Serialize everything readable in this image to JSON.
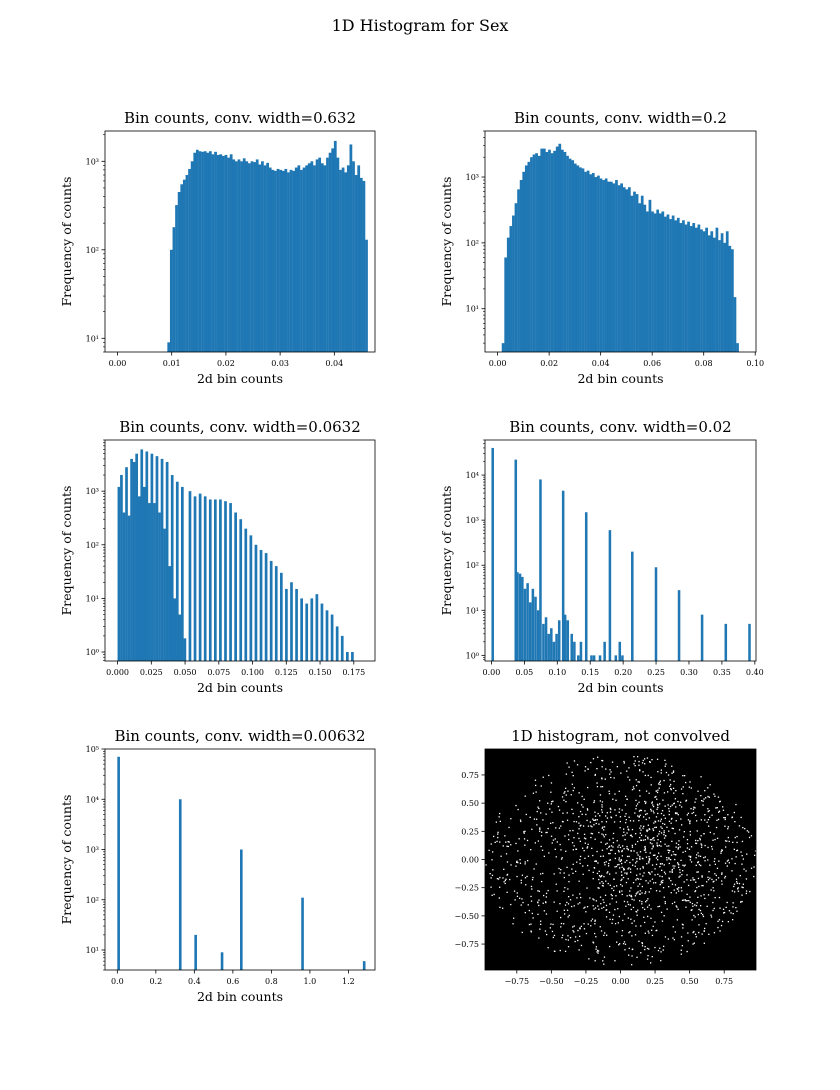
{
  "figure": {
    "suptitle": "1D Histogram for Sex"
  },
  "colors": {
    "bar": "#1f77b4",
    "axes": "#000000",
    "background": "#ffffff",
    "image_bg": "#000000",
    "dots": "#ffffff"
  },
  "chart_data": [
    {
      "id": "w0632",
      "type": "bar",
      "yscale": "log",
      "title": "Bin counts, conv. width=0.632",
      "xlabel": "2d bin counts",
      "ylabel": "Frequency of counts",
      "xlim": [
        -0.0023,
        0.0475
      ],
      "ylim": [
        7,
        2200
      ],
      "xticks": [
        0,
        0.01,
        0.02,
        0.03,
        0.04
      ],
      "xtick_labels": [
        "0.00",
        "0.01",
        "0.02",
        "0.03",
        "0.04"
      ],
      "yticks": [
        10,
        100,
        1000
      ],
      "ytick_labels": [
        "10¹",
        "10²",
        "10³"
      ],
      "bin_width": 0.00048,
      "bin_start": 0.0092,
      "values": [
        9,
        100,
        180,
        320,
        450,
        550,
        620,
        700,
        820,
        1000,
        1250,
        1350,
        1300,
        1280,
        1300,
        1250,
        1300,
        1200,
        1280,
        1180,
        1200,
        1150,
        1180,
        1100,
        1200,
        1050,
        1000,
        1050,
        1000,
        1080,
        1000,
        950,
        1000,
        980,
        1050,
        920,
        1000,
        900,
        960,
        850,
        800,
        780,
        820,
        800,
        780,
        820,
        750,
        800,
        780,
        850,
        900,
        800,
        850,
        900,
        950,
        1000,
        900,
        1050,
        1100,
        950,
        900,
        1100,
        1250,
        1400,
        1700,
        1100,
        800,
        850,
        750,
        900,
        1550,
        1000,
        700,
        900,
        650,
        600,
        130
      ]
    },
    {
      "id": "w02",
      "type": "bar",
      "yscale": "log",
      "title": "Bin counts, conv. width=0.2",
      "xlabel": "2d bin counts",
      "ylabel": "Frequency of counts",
      "xlim": [
        -0.0049,
        0.1003
      ],
      "ylim": [
        2.2,
        5000
      ],
      "xticks": [
        0,
        0.02,
        0.04,
        0.06,
        0.08,
        0.1
      ],
      "xtick_labels": [
        "0.00",
        "0.02",
        "0.04",
        "0.06",
        "0.08",
        "0.10"
      ],
      "yticks": [
        10,
        100,
        1000
      ],
      "ytick_labels": [
        "10¹",
        "10²",
        "10³"
      ],
      "bin_width": 0.001,
      "bin_start": 0.0016,
      "values": [
        3,
        60,
        120,
        180,
        260,
        400,
        650,
        900,
        1200,
        1500,
        1700,
        2000,
        2200,
        2300,
        2100,
        2700,
        2700,
        2400,
        2600,
        2300,
        2500,
        2900,
        3200,
        2600,
        2400,
        2100,
        1900,
        1800,
        1600,
        1500,
        1400,
        1350,
        1200,
        1250,
        1100,
        1150,
        1000,
        1050,
        950,
        900,
        950,
        850,
        850,
        800,
        900,
        750,
        800,
        700,
        650,
        700,
        520,
        600,
        550,
        400,
        520,
        380,
        300,
        450,
        300,
        280,
        320,
        280,
        300,
        250,
        270,
        230,
        260,
        220,
        240,
        200,
        220,
        190,
        210,
        180,
        200,
        170,
        190,
        160,
        150,
        170,
        130,
        150,
        120,
        170,
        110,
        140,
        100,
        150,
        90,
        80,
        15,
        3
      ]
    },
    {
      "id": "w00632",
      "type": "bar",
      "yscale": "log",
      "title": "Bin counts, conv. width=0.0632",
      "xlabel": "2d bin counts",
      "ylabel": "Frequency of counts",
      "xlim": [
        -0.0093,
        0.1907
      ],
      "ylim": [
        0.68,
        9000
      ],
      "xticks": [
        0,
        0.025,
        0.05,
        0.075,
        0.1,
        0.125,
        0.15,
        0.175
      ],
      "xtick_labels": [
        "0.000",
        "0.025",
        "0.050",
        "0.075",
        "0.100",
        "0.125",
        "0.150",
        "0.175"
      ],
      "yticks": [
        1,
        10,
        100,
        1000
      ],
      "ytick_labels": [
        "10⁰",
        "10¹",
        "10²",
        "10³"
      ],
      "bin_width": 0.00188,
      "bin_start": 0,
      "values": [
        1200,
        2000,
        400,
        2800,
        350,
        4000,
        3500,
        5000,
        800,
        6000,
        1200,
        5500,
        600,
        5000,
        600,
        4500,
        400,
        4000,
        200,
        3500,
        40,
        2000,
        10,
        1500,
        5,
        1200,
        1.8,
        0,
        1000,
        0,
        800,
        0,
        900,
        0,
        800,
        0,
        700,
        0,
        700,
        0,
        700,
        0,
        650,
        0,
        600,
        0,
        400,
        0,
        300,
        0,
        200,
        0,
        150,
        0,
        100,
        0,
        80,
        0,
        70,
        0,
        50,
        0,
        40,
        0,
        30,
        0,
        15,
        0,
        20,
        0,
        15,
        0,
        10,
        0,
        8,
        0,
        10,
        0,
        12,
        0,
        8,
        0,
        6,
        0,
        5,
        0,
        3,
        0,
        2,
        0,
        1,
        0,
        1
      ]
    },
    {
      "id": "w002",
      "type": "bar",
      "yscale": "log",
      "title": "Bin counts, conv. width=0.02",
      "xlabel": "2d bin counts",
      "ylabel": "Frequency of counts",
      "xlim": [
        -0.0098,
        0.4018
      ],
      "ylim": [
        0.75,
        60000
      ],
      "xticks": [
        0,
        0.05,
        0.1,
        0.15,
        0.2,
        0.25,
        0.3,
        0.35,
        0.4
      ],
      "xtick_labels": [
        "0.00",
        "0.05",
        "0.10",
        "0.15",
        "0.20",
        "0.25",
        "0.30",
        "0.35",
        "0.40"
      ],
      "yticks": [
        1,
        10,
        100,
        1000,
        10000
      ],
      "ytick_labels": [
        "10⁰",
        "10¹",
        "10²",
        "10³",
        "10⁴"
      ],
      "bin_width": 0.00362,
      "bar_pairs": [
        [
          0,
          40000
        ],
        [
          0.035,
          22000
        ],
        [
          0.0375,
          70
        ],
        [
          0.0415,
          65
        ],
        [
          0.045,
          55
        ],
        [
          0.049,
          30
        ],
        [
          0.053,
          40
        ],
        [
          0.057,
          15
        ],
        [
          0.061,
          30
        ],
        [
          0.065,
          20
        ],
        [
          0.069,
          10
        ],
        [
          0.0725,
          8000
        ],
        [
          0.077,
          5
        ],
        [
          0.081,
          7
        ],
        [
          0.085,
          3
        ],
        [
          0.089,
          4
        ],
        [
          0.093,
          2
        ],
        [
          0.097,
          3
        ],
        [
          0.101,
          6
        ],
        [
          0.107,
          4500
        ],
        [
          0.11,
          8
        ],
        [
          0.114,
          6
        ],
        [
          0.12,
          3
        ],
        [
          0.124,
          2
        ],
        [
          0.13,
          1
        ],
        [
          0.134,
          2
        ],
        [
          0.142,
          1500
        ],
        [
          0.15,
          1
        ],
        [
          0.154,
          1
        ],
        [
          0.163,
          1
        ],
        [
          0.17,
          2
        ],
        [
          0.178,
          600
        ],
        [
          0.187,
          1
        ],
        [
          0.193,
          2
        ],
        [
          0.197,
          1
        ],
        [
          0.212,
          200
        ],
        [
          0.248,
          90
        ],
        [
          0.283,
          28
        ],
        [
          0.318,
          8
        ],
        [
          0.354,
          5
        ],
        [
          0.39,
          5
        ]
      ]
    },
    {
      "id": "w000632",
      "type": "bar",
      "yscale": "log",
      "title": "Bin counts, conv. width=0.00632",
      "xlabel": "2d bin counts",
      "ylabel": "Frequency of counts",
      "xlim": [
        -0.064,
        1.338
      ],
      "ylim": [
        4,
        100000
      ],
      "xticks": [
        0,
        0.2,
        0.4,
        0.6,
        0.8,
        1.0,
        1.2
      ],
      "xtick_labels": [
        "0.0",
        "0.2",
        "0.4",
        "0.6",
        "0.8",
        "1.0",
        "1.2"
      ],
      "yticks": [
        10,
        100,
        1000,
        10000,
        100000
      ],
      "ytick_labels": [
        "10¹",
        "10²",
        "10³",
        "10⁴",
        "10⁵"
      ],
      "bin_width": 0.0128,
      "bar_pairs": [
        [
          0,
          70000
        ],
        [
          0.32,
          10000
        ],
        [
          0.4,
          20
        ],
        [
          0.537,
          9
        ],
        [
          0.637,
          1000
        ],
        [
          0.955,
          110
        ],
        [
          1.275,
          6
        ]
      ]
    },
    {
      "id": "hist2d",
      "type": "scatter",
      "title": "1D histogram, not convolved",
      "xlim": [
        -0.98,
        0.98
      ],
      "ylim": [
        -0.98,
        0.98
      ],
      "xticks": [
        -0.75,
        -0.5,
        -0.25,
        0,
        0.25,
        0.5,
        0.75
      ],
      "xtick_labels": [
        "−0.75",
        "−0.50",
        "−0.25",
        "0.00",
        "0.25",
        "0.50",
        "0.75"
      ],
      "yticks": [
        -0.75,
        -0.5,
        -0.25,
        0,
        0.25,
        0.5,
        0.75
      ],
      "ytick_labels": [
        "−0.75",
        "−0.50",
        "−0.25",
        "0.00",
        "0.25",
        "0.50",
        "0.75"
      ],
      "point_count": 1500,
      "point_seed": 7
    }
  ]
}
